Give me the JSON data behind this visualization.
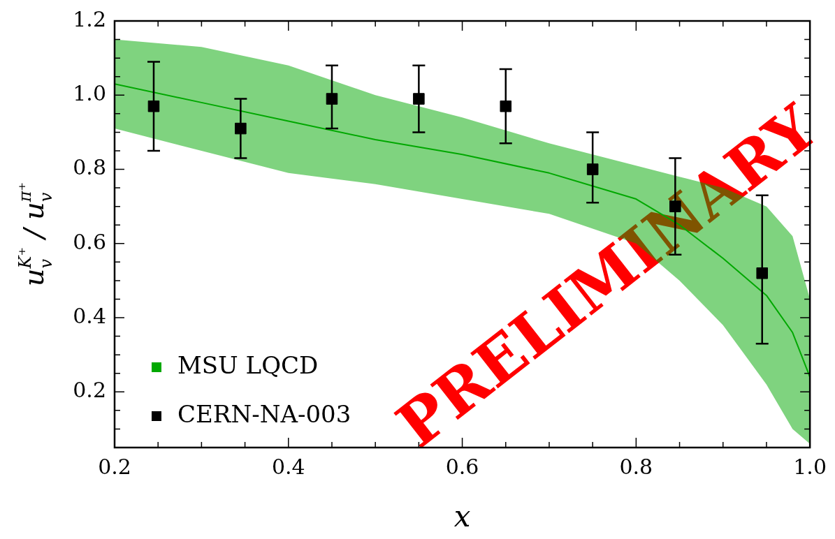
{
  "chart_data": {
    "type": "line",
    "xlabel": "x",
    "ylabel": "u$_{v}$$^{K⁺}$ / u$_{v}$$^{π⁺}$",
    "xlim": [
      0.2,
      1.0
    ],
    "ylim": [
      0.05,
      1.2
    ],
    "xticks": [
      0.2,
      {
        "value": 0.25,
        "label": null
      },
      {
        "value": 0.3,
        "label": null
      },
      {
        "value": 0.35,
        "label": null
      },
      0.4,
      {
        "value": 0.45,
        "label": null
      },
      {
        "value": 0.5,
        "label": null
      },
      {
        "value": 0.55,
        "label": null
      },
      0.6,
      {
        "value": 0.65,
        "label": null
      },
      {
        "value": 0.7,
        "label": null
      },
      {
        "value": 0.75,
        "label": null
      },
      0.8,
      {
        "value": 0.85,
        "label": null
      },
      {
        "value": 0.9,
        "label": null
      },
      {
        "value": 0.95,
        "label": null
      },
      {
        "value": 1,
        "label": "1.0"
      }
    ],
    "yticks": [
      {
        "value": 0.1,
        "label": null
      },
      {
        "value": 0.15,
        "label": null
      },
      0.2,
      {
        "value": 0.25,
        "label": null
      },
      {
        "value": 0.3,
        "label": null
      },
      {
        "value": 0.35,
        "label": null
      },
      0.4,
      {
        "value": 0.45,
        "label": null
      },
      {
        "value": 0.5,
        "label": null
      },
      {
        "value": 0.55,
        "label": null
      },
      0.6,
      {
        "value": 0.65,
        "label": null
      },
      {
        "value": 0.7,
        "label": null
      },
      {
        "value": 0.75,
        "label": null
      },
      0.8,
      {
        "value": 0.85,
        "label": null
      },
      {
        "value": 0.9,
        "label": null
      },
      {
        "value": 0.95,
        "label": null
      },
      {
        "value": 1,
        "label": "1.0"
      },
      {
        "value": 1.05,
        "label": null
      },
      {
        "value": 1.1,
        "label": null
      },
      {
        "value": 1.15,
        "label": null
      },
      1.2
    ],
    "series": [
      {
        "name": "MSU LQCD",
        "color": "#00a800",
        "x": [
          0.2,
          0.3,
          0.4,
          0.5,
          0.6,
          0.7,
          0.8,
          0.85,
          0.9,
          0.95,
          0.98,
          1.0
        ],
        "values": [
          1.03,
          0.98,
          0.93,
          0.88,
          0.84,
          0.79,
          0.72,
          0.65,
          0.56,
          0.46,
          0.36,
          0.24
        ],
        "lower": [
          0.91,
          0.85,
          0.79,
          0.76,
          0.72,
          0.68,
          0.6,
          0.5,
          0.38,
          0.22,
          0.1,
          0.06
        ],
        "upper": [
          1.15,
          1.13,
          1.08,
          1.0,
          0.94,
          0.87,
          0.81,
          0.78,
          0.75,
          0.7,
          0.62,
          0.45
        ]
      },
      {
        "name": "CERN-NA-003",
        "type": "scatter",
        "color": "#000000",
        "marker": "square",
        "x": [
          0.245,
          0.345,
          0.45,
          0.55,
          0.65,
          0.75,
          0.845,
          0.945
        ],
        "values": [
          0.97,
          0.91,
          0.99,
          0.99,
          0.97,
          0.8,
          0.7,
          0.52
        ],
        "errors": [
          [
            0.85,
            1.09
          ],
          [
            0.83,
            0.99
          ],
          [
            0.91,
            1.08
          ],
          [
            0.9,
            1.08
          ],
          [
            0.87,
            1.07
          ],
          [
            0.71,
            0.9
          ],
          [
            0.57,
            0.83
          ],
          [
            0.33,
            0.73
          ]
        ]
      }
    ],
    "legend": "bottom left",
    "grid": false,
    "marker": "none",
    "line_style": "solid",
    "annotations": [
      "PRELIMINARY"
    ]
  }
}
